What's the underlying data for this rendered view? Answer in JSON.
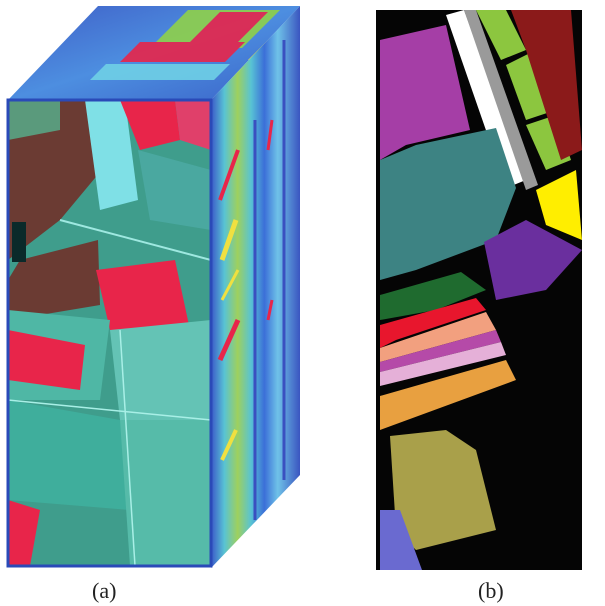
{
  "figure": {
    "caption_a": "(a)",
    "caption_b": "(b)"
  },
  "colors": {
    "background": "#ffffff",
    "cube_top": "#3a63c8",
    "cube_side": "#2e6ee0",
    "image_base": "#3f9d8c",
    "field_brown": "#6b3b33",
    "field_red": "#e8254a",
    "field_cyan": "#7fe0e6",
    "map_black": "#050505",
    "class_purple": "#a53ea6",
    "class_teal": "#3d8383",
    "class_green_light": "#8cc63f",
    "class_dark_red": "#8b1a1a",
    "class_gray": "#9a9a9a",
    "class_white": "#ffffff",
    "class_yellow": "#ffee00",
    "class_violet": "#6a2f9e",
    "class_dark_green": "#1f6b2f",
    "class_red": "#e8162d",
    "class_salmon": "#f2a07f",
    "class_magenta": "#b54aa8",
    "class_pink": "#e5b0d8",
    "class_orange": "#e8a040",
    "class_olive": "#a9a04a",
    "class_blue_violet": "#6a6ad0"
  }
}
